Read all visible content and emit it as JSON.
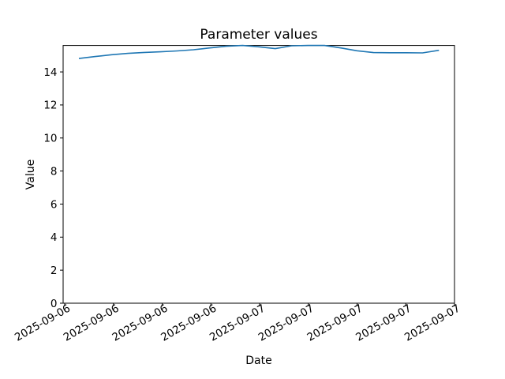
{
  "figure": {
    "background": "#ffffff",
    "axis_color": "#000000"
  },
  "chart_data": {
    "type": "line",
    "title": "Parameter values",
    "xlabel": "Date",
    "ylabel": "Value",
    "ylim": [
      0,
      15.6
    ],
    "yticks": [
      0,
      2,
      4,
      6,
      8,
      10,
      12,
      14
    ],
    "x_tick_labels": [
      "2025-09-06",
      "2025-09-06",
      "2025-09-06",
      "2025-09-06",
      "2025-09-07",
      "2025-09-07",
      "2025-09-07",
      "2025-09-07",
      "2025-09-07"
    ],
    "grid": false,
    "legend": false,
    "line_color": "#1f77b4",
    "series": [
      {
        "name": "parameter-values",
        "x_frac": [
          0.0403,
          0.0821,
          0.1239,
          0.1657,
          0.2076,
          0.2494,
          0.2912,
          0.333,
          0.3748,
          0.4166,
          0.4584,
          0.5002,
          0.5421,
          0.5839,
          0.6257,
          0.6675,
          0.7093,
          0.7511,
          0.7929,
          0.8347,
          0.8766,
          0.9184,
          0.9602
        ],
        "values": [
          14.81,
          14.93,
          15.04,
          15.12,
          15.18,
          15.22,
          15.27,
          15.34,
          15.45,
          15.55,
          15.6,
          15.52,
          15.41,
          15.58,
          15.6,
          15.6,
          15.45,
          15.28,
          15.17,
          15.16,
          15.16,
          15.15,
          15.31
        ]
      }
    ]
  }
}
